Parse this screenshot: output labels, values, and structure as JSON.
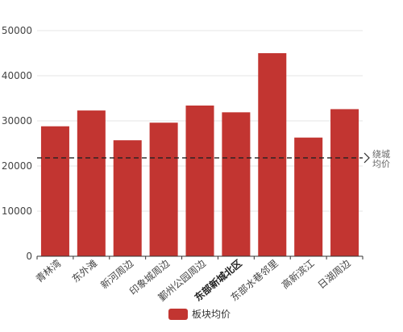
{
  "chart_data": {
    "type": "bar",
    "categories": [
      "青林湾",
      "东外滩",
      "新河周边",
      "印象城周边",
      "鄞州公园周边",
      "东部新城北区",
      "东部水巷邻里",
      "高新滨江",
      "日湖周边"
    ],
    "series": [
      {
        "name": "板块均价",
        "values": [
          28800,
          32300,
          25700,
          29600,
          33400,
          31900,
          45000,
          26300,
          32600
        ]
      }
    ],
    "highlight_category": "东部新城北区",
    "reference_line": {
      "label": "绕城均价",
      "value": 21800
    },
    "ylim": [
      0,
      50000
    ],
    "yticks": [
      "0",
      "10000",
      "20000",
      "30000",
      "40000",
      "50000"
    ],
    "grid": true,
    "legend": "bottom-center",
    "bar_color": "#c23531"
  }
}
